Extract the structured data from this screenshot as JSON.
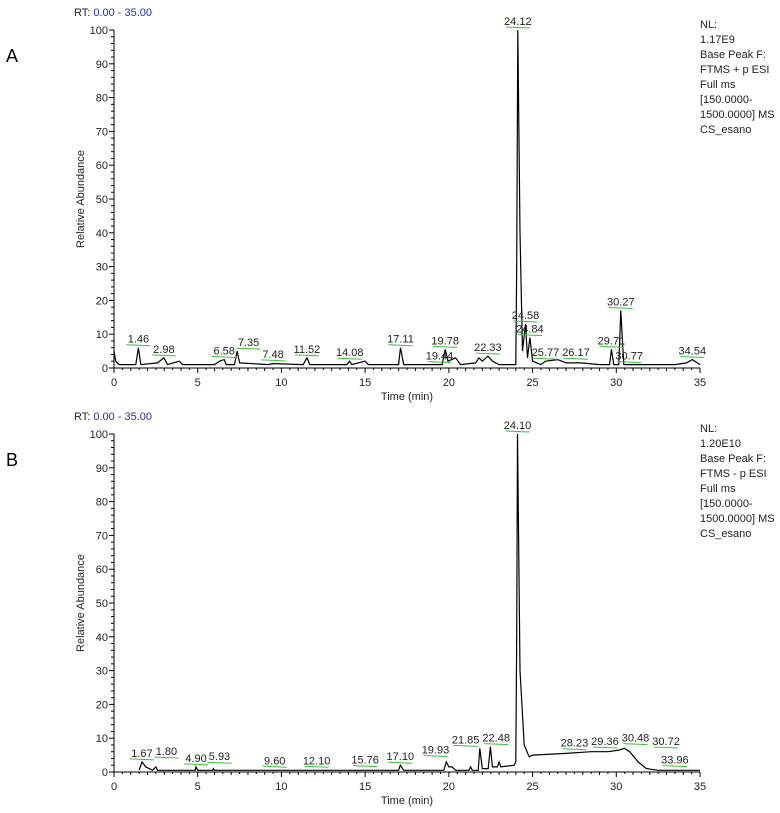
{
  "chart_data": [
    {
      "type": "line",
      "panel_label": "A",
      "rt_prefix": "RT:",
      "rt_range": "0.00 - 35.00",
      "xlabel": "Time (min)",
      "ylabel": "Relative Abundance",
      "xlim": [
        0,
        35
      ],
      "ylim": [
        0,
        100
      ],
      "xticks": [
        0,
        5,
        10,
        15,
        20,
        25,
        30,
        35
      ],
      "yticks": [
        0,
        10,
        20,
        30,
        40,
        50,
        60,
        70,
        80,
        90,
        100
      ],
      "info": [
        "NL:",
        "1.17E9",
        "Base Peak F:",
        "FTMS + p ESI",
        "Full ms",
        "[150.0000-",
        "1500.0000]  MS",
        "CS_esano"
      ],
      "trace": [
        [
          0,
          5
        ],
        [
          0.1,
          2
        ],
        [
          0.3,
          1
        ],
        [
          1.3,
          1
        ],
        [
          1.46,
          6
        ],
        [
          1.6,
          1
        ],
        [
          2.6,
          1.5
        ],
        [
          2.98,
          3
        ],
        [
          3.2,
          1
        ],
        [
          3.9,
          2
        ],
        [
          4.1,
          1
        ],
        [
          6.0,
          1
        ],
        [
          6.3,
          2
        ],
        [
          6.58,
          2.5
        ],
        [
          6.7,
          1
        ],
        [
          7.2,
          1
        ],
        [
          7.35,
          5
        ],
        [
          7.5,
          1.5
        ],
        [
          9.2,
          1
        ],
        [
          9.5,
          1.3
        ],
        [
          11.3,
          1
        ],
        [
          11.52,
          3
        ],
        [
          11.7,
          1
        ],
        [
          13.9,
          1
        ],
        [
          14.08,
          2
        ],
        [
          14.2,
          1
        ],
        [
          15.0,
          2
        ],
        [
          15.2,
          1
        ],
        [
          17.0,
          1
        ],
        [
          17.11,
          6
        ],
        [
          17.3,
          1
        ],
        [
          19.6,
          1
        ],
        [
          19.78,
          5.5
        ],
        [
          19.95,
          2
        ],
        [
          20.4,
          3
        ],
        [
          20.7,
          1
        ],
        [
          21.6,
          1.5
        ],
        [
          21.8,
          3
        ],
        [
          22.0,
          2
        ],
        [
          22.33,
          3.5
        ],
        [
          22.6,
          2
        ],
        [
          23.0,
          1
        ],
        [
          24.0,
          1
        ],
        [
          24.05,
          30
        ],
        [
          24.12,
          100
        ],
        [
          24.25,
          40
        ],
        [
          24.4,
          5
        ],
        [
          24.58,
          13
        ],
        [
          24.7,
          3
        ],
        [
          24.84,
          9
        ],
        [
          25.0,
          2
        ],
        [
          25.5,
          1
        ],
        [
          25.77,
          2
        ],
        [
          26.5,
          2.5
        ],
        [
          27.0,
          1.5
        ],
        [
          27.9,
          1.5
        ],
        [
          29.0,
          1
        ],
        [
          29.6,
          1
        ],
        [
          29.71,
          5.5
        ],
        [
          29.85,
          1
        ],
        [
          30.15,
          1
        ],
        [
          30.27,
          17
        ],
        [
          30.45,
          1
        ],
        [
          33.5,
          1
        ],
        [
          34.2,
          1.5
        ],
        [
          34.54,
          2.5
        ],
        [
          35,
          1
        ]
      ],
      "peak_labels": [
        {
          "text": "1.46",
          "x": 1.46,
          "y": 6
        },
        {
          "text": "2.98",
          "x": 2.98,
          "y": 3
        },
        {
          "text": "6.58",
          "x": 6.58,
          "y": 2.5
        },
        {
          "text": "7.35",
          "x": 7.35,
          "y": 5
        },
        {
          "text": "7.48",
          "x": 7.48,
          "y": 1.5
        },
        {
          "text": "11.52",
          "x": 11.52,
          "y": 3
        },
        {
          "text": "14.08",
          "x": 14.08,
          "y": 2
        },
        {
          "text": "17.11",
          "x": 17.11,
          "y": 6
        },
        {
          "text": "19.44",
          "x": 19.44,
          "y": 1
        },
        {
          "text": "19.78",
          "x": 19.78,
          "y": 5.5
        },
        {
          "text": "22.33",
          "x": 22.33,
          "y": 3.5
        },
        {
          "text": "24.12",
          "x": 24.12,
          "y": 100
        },
        {
          "text": "24.58",
          "x": 24.58,
          "y": 13
        },
        {
          "text": "24.84",
          "x": 24.84,
          "y": 9
        },
        {
          "text": "25.77",
          "x": 25.77,
          "y": 2
        },
        {
          "text": "26.17",
          "x": 26.17,
          "y": 2
        },
        {
          "text": "29.71",
          "x": 29.71,
          "y": 5.5
        },
        {
          "text": "30.27",
          "x": 30.27,
          "y": 17
        },
        {
          "text": "30.77",
          "x": 30.77,
          "y": 1
        },
        {
          "text": "34.54",
          "x": 34.54,
          "y": 2.5
        }
      ]
    },
    {
      "type": "line",
      "panel_label": "B",
      "rt_prefix": "RT:",
      "rt_range": "0.00 - 35.00",
      "xlabel": "Time (min)",
      "ylabel": "Relative Abundance",
      "xlim": [
        0,
        35
      ],
      "ylim": [
        0,
        100
      ],
      "xticks": [
        0,
        5,
        10,
        15,
        20,
        25,
        30,
        35
      ],
      "yticks": [
        0,
        10,
        20,
        30,
        40,
        50,
        60,
        70,
        80,
        90,
        100
      ],
      "info": [
        "NL:",
        "1.20E10",
        "Base Peak F:",
        "FTMS - p ESI",
        "Full ms",
        "[150.0000-",
        "1500.0000]  MS",
        "CS_esano"
      ],
      "trace": [
        [
          1.5,
          0.5
        ],
        [
          1.67,
          3
        ],
        [
          1.9,
          1.5
        ],
        [
          2.3,
          0.5
        ],
        [
          2.5,
          1.5
        ],
        [
          2.6,
          0.5
        ],
        [
          4.85,
          0.5
        ],
        [
          4.9,
          1.5
        ],
        [
          5.0,
          0.5
        ],
        [
          5.9,
          0.5
        ],
        [
          5.93,
          1
        ],
        [
          6.0,
          0.5
        ],
        [
          17.0,
          0.5
        ],
        [
          17.1,
          2
        ],
        [
          17.3,
          0.5
        ],
        [
          19.7,
          0.5
        ],
        [
          19.85,
          3
        ],
        [
          20.0,
          1.5
        ],
        [
          20.2,
          1.5
        ],
        [
          20.4,
          0.5
        ],
        [
          21.2,
          0.5
        ],
        [
          21.3,
          1.5
        ],
        [
          21.4,
          0.5
        ],
        [
          21.75,
          0.5
        ],
        [
          21.85,
          7
        ],
        [
          22.0,
          1
        ],
        [
          22.35,
          1
        ],
        [
          22.48,
          7.5
        ],
        [
          22.6,
          1.5
        ],
        [
          22.9,
          1.5
        ],
        [
          23.0,
          3
        ],
        [
          23.1,
          1.5
        ],
        [
          23.9,
          2
        ],
        [
          24.0,
          3
        ],
        [
          24.05,
          40
        ],
        [
          24.1,
          100
        ],
        [
          24.25,
          30
        ],
        [
          24.5,
          8
        ],
        [
          24.8,
          4.5
        ],
        [
          25.0,
          5
        ],
        [
          27.0,
          5.5
        ],
        [
          28.5,
          6
        ],
        [
          29.5,
          6
        ],
        [
          30.2,
          6.5
        ],
        [
          30.48,
          7
        ],
        [
          30.8,
          6
        ],
        [
          31.3,
          3
        ],
        [
          31.8,
          1
        ],
        [
          32.5,
          0.5
        ],
        [
          35,
          0.5
        ]
      ],
      "peak_labels": [
        {
          "text": "1.67",
          "x": 1.67,
          "y": 3
        },
        {
          "text": "1.80",
          "x": 3.0,
          "y": 3.5
        },
        {
          "text": "4.90",
          "x": 4.9,
          "y": 1.5
        },
        {
          "text": "5.93",
          "x": 6.3,
          "y": 2
        },
        {
          "text": "9.60",
          "x": 9.6,
          "y": 0.8
        },
        {
          "text": "12.10",
          "x": 12.1,
          "y": 0.8
        },
        {
          "text": "15.76",
          "x": 15.0,
          "y": 1
        },
        {
          "text": "17.10",
          "x": 17.1,
          "y": 2
        },
        {
          "text": "19.93",
          "x": 19.2,
          "y": 4
        },
        {
          "text": "21.85",
          "x": 21.0,
          "y": 7
        },
        {
          "text": "22.48",
          "x": 22.48,
          "y": 7.5
        },
        {
          "text": "24.10",
          "x": 24.1,
          "y": 100
        },
        {
          "text": "28.23",
          "x": 27.5,
          "y": 6
        },
        {
          "text": "29.36",
          "x": 29.0,
          "y": 6.5
        },
        {
          "text": "30.48",
          "x": 30.48,
          "y": 7.5
        },
        {
          "text": "30.72",
          "x": 32.0,
          "y": 6.5
        },
        {
          "text": "33.96",
          "x": 33.5,
          "y": 1
        }
      ]
    }
  ],
  "colors": {
    "trace": "#000000",
    "rt_range": "#2a2ab8",
    "label_baseline": "#3cbf3c",
    "text": "#222222"
  }
}
